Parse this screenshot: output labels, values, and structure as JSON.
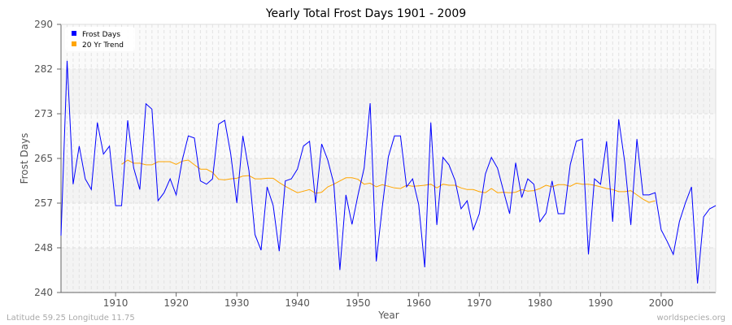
{
  "chart_data": {
    "type": "line",
    "title": "Yearly Total Frost Days 1901 - 2009",
    "xlabel": "Year",
    "ylabel": "Frost Days",
    "xlim": [
      1901,
      2009
    ],
    "ylim": [
      240,
      290
    ],
    "yticks": [
      240,
      248,
      257,
      265,
      273,
      282,
      290
    ],
    "xticks": [
      1910,
      1920,
      1930,
      1940,
      1950,
      1960,
      1970,
      1980,
      1990,
      2000
    ],
    "grid": true,
    "legend": "top-left",
    "series": [
      {
        "name": "Frost Days",
        "color": "#0000ff",
        "x_start": 1901,
        "values": [
          250.6,
          283.2,
          260.2,
          267.3,
          261.2,
          259.2,
          271.7,
          265.8,
          267.3,
          256.2,
          256.2,
          272.1,
          263.2,
          259.2,
          275.2,
          274.2,
          257.1,
          258.6,
          261.2,
          258.2,
          264.7,
          269.2,
          268.8,
          260.8,
          260.2,
          261.2,
          271.4,
          272.1,
          265.8,
          256.7,
          269.2,
          262.7,
          250.8,
          247.9,
          259.7,
          256.2,
          247.7,
          260.8,
          261.2,
          263.0,
          267.3,
          268.2,
          256.7,
          267.7,
          264.7,
          260.3,
          244.2,
          258.2,
          252.7,
          258.2,
          263.2,
          275.3,
          245.8,
          255.9,
          265.3,
          269.2,
          269.2,
          259.7,
          261.2,
          256.4,
          244.7,
          271.7,
          252.6,
          265.2,
          263.8,
          260.9,
          255.6,
          257.1,
          251.7,
          254.7,
          262.1,
          265.2,
          263.2,
          258.9,
          254.7,
          264.2,
          257.7,
          261.2,
          260.2,
          253.2,
          254.8,
          260.8,
          254.7,
          254.7,
          263.8,
          268.2,
          268.6,
          247.1,
          261.2,
          260.2,
          268.2,
          253.2,
          272.3,
          264.2,
          252.6,
          268.6,
          258.2,
          258.2,
          258.6,
          251.7,
          249.5,
          247.1,
          253.2,
          256.7,
          259.7,
          241.7,
          254.1,
          255.6,
          256.2
        ]
      },
      {
        "name": "20 Yr Trend",
        "color": "#ffa500",
        "x_start": 1911,
        "values": [
          263.9,
          264.7,
          264.1,
          264.1,
          263.8,
          263.8,
          264.4,
          264.4,
          264.4,
          263.9,
          264.5,
          264.7,
          263.8,
          263.0,
          263.0,
          262.4,
          261.1,
          261.0,
          261.2,
          261.3,
          261.7,
          261.8,
          261.2,
          261.2,
          261.3,
          261.3,
          260.5,
          259.8,
          259.2,
          258.6,
          258.9,
          259.2,
          258.5,
          258.7,
          259.7,
          260.2,
          260.8,
          261.4,
          261.4,
          261.1,
          260.2,
          260.4,
          259.7,
          260.1,
          259.8,
          259.5,
          259.4,
          260.0,
          259.8,
          259.9,
          260.0,
          260.2,
          259.5,
          260.2,
          260.0,
          260.0,
          259.5,
          259.2,
          259.2,
          258.8,
          258.6,
          259.4,
          258.6,
          258.7,
          258.6,
          258.7,
          259.2,
          258.9,
          259.0,
          259.4,
          260.0,
          259.7,
          260.1,
          260.1,
          259.8,
          260.4,
          260.2,
          260.2,
          260.0,
          259.7,
          259.4,
          259.2,
          258.8,
          258.8,
          259.0,
          258.2,
          257.4,
          256.8,
          257.1
        ]
      }
    ]
  },
  "footer": {
    "left": "Latitude 59.25 Longitude 11.75",
    "right": "worldspecies.org"
  }
}
